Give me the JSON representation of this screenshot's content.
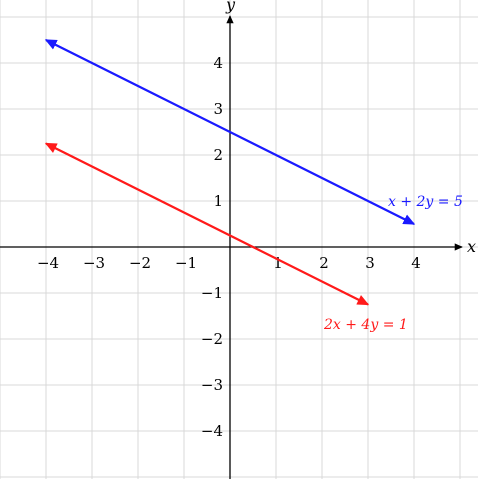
{
  "chart_data": {
    "type": "line",
    "title": "",
    "xlabel": "x",
    "ylabel": "y",
    "xlim": [
      -5,
      5
    ],
    "ylim": [
      -5,
      5
    ],
    "grid": true,
    "x_ticks": [
      {
        "value": -4,
        "label": "−4"
      },
      {
        "value": -3,
        "label": "−3"
      },
      {
        "value": -2,
        "label": "−2"
      },
      {
        "value": -1,
        "label": "−1"
      },
      {
        "value": 1,
        "label": "1"
      },
      {
        "value": 2,
        "label": "2"
      },
      {
        "value": 3,
        "label": "3"
      },
      {
        "value": 4,
        "label": "4"
      }
    ],
    "y_ticks": [
      {
        "value": 4,
        "label": "4"
      },
      {
        "value": 3,
        "label": "3"
      },
      {
        "value": 2,
        "label": "2"
      },
      {
        "value": 1,
        "label": "1"
      },
      {
        "value": -1,
        "label": "−1"
      },
      {
        "value": -2,
        "label": "−2"
      },
      {
        "value": -3,
        "label": "−3"
      },
      {
        "value": -4,
        "label": "−4"
      }
    ],
    "series": [
      {
        "name": "x + 2y = 5",
        "color": "#1a1aff",
        "arrows": "both",
        "points": [
          [
            -4,
            4.5
          ],
          [
            4,
            0.5
          ]
        ]
      },
      {
        "name": "2x + 4y = 1",
        "color": "#ff1a1a",
        "arrows": "both",
        "points": [
          [
            -4,
            2.25
          ],
          [
            3,
            -1.25
          ]
        ]
      }
    ]
  }
}
